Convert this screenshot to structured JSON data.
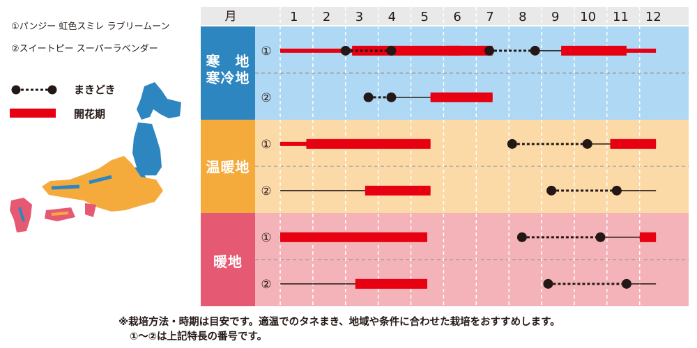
{
  "legend": {
    "varieties": [
      "①パンジー 虹色スミレ ラブリームーン",
      "②スイートピー スーパーラベンダー"
    ],
    "sowing_label": "まきどき",
    "flowering_label": "開花期"
  },
  "colors": {
    "header_bg": "#e9e9e9",
    "sowing": "#231815",
    "flowering": "#e60012",
    "cold_dark": "#2e86c1",
    "cold_light": "#aed8f3",
    "temperate_dark": "#f5ab3c",
    "temperate_light": "#fbdaa8",
    "warm_dark": "#e55a72",
    "warm_light": "#f4b3b8"
  },
  "map_legend_icon": "japan-map-icon",
  "notes": [
    "※栽培方法・時期は目安です。適温でのタネまき、地域や条件に合わせた栽培をおすすめします。",
    "①〜②は上記特長の番号です。"
  ],
  "chart_data": {
    "type": "gantt",
    "header_label": "月",
    "months": [
      "1",
      "2",
      "3",
      "4",
      "5",
      "6",
      "7",
      "8",
      "9",
      "10",
      "11",
      "12"
    ],
    "regions": [
      {
        "name": "寒　地\n寒冷地",
        "color_key": "cold",
        "rows": [
          {
            "label": "①",
            "sowing": [
              [
                3.0,
                4.4
              ],
              [
                7.4,
                8.8
              ]
            ],
            "grow_lines": [
              [
                4.4,
                6.1
              ],
              [
                8.8,
                9.6
              ]
            ],
            "flowering": [
              [
                6.1,
                7.5
              ],
              [
                1.0,
                3.2
              ],
              [
                3.2,
                6.5
              ],
              [
                9.6,
                12.5
              ]
            ],
            "flowering_thick": [
              [
                6.1,
                7.5
              ],
              [
                3.2,
                6.5
              ],
              [
                9.6,
                11.6
              ]
            ]
          },
          {
            "label": "②",
            "sowing": [
              [
                3.7,
                4.4
              ]
            ],
            "grow_lines": [
              [
                4.4,
                5.6
              ]
            ],
            "flowering": [
              [
                5.6,
                7.5
              ]
            ],
            "flowering_thick": [
              [
                5.6,
                7.5
              ]
            ]
          }
        ]
      },
      {
        "name": "温暖地",
        "color_key": "temperate",
        "rows": [
          {
            "label": "①",
            "sowing": [
              [
                8.1,
                10.4
              ]
            ],
            "grow_lines": [
              [
                10.4,
                11.1
              ]
            ],
            "flowering": [
              [
                1.0,
                5.6
              ],
              [
                11.1,
                12.5
              ]
            ],
            "flowering_thick": [
              [
                1.8,
                5.6
              ],
              [
                11.1,
                12.5
              ]
            ]
          },
          {
            "label": "②",
            "sowing": [
              [
                9.3,
                11.3
              ]
            ],
            "grow_lines": [
              [
                1.0,
                3.6
              ],
              [
                11.3,
                12.5
              ]
            ],
            "flowering": [
              [
                3.6,
                5.6
              ]
            ],
            "flowering_thick": [
              [
                3.6,
                5.6
              ]
            ]
          }
        ]
      },
      {
        "name": "暖地",
        "color_key": "warm",
        "rows": [
          {
            "label": "①",
            "sowing": [
              [
                8.4,
                10.8
              ]
            ],
            "grow_lines": [
              [
                10.8,
                12.0
              ]
            ],
            "flowering": [
              [
                1.0,
                5.5
              ],
              [
                12.0,
                12.5
              ]
            ],
            "flowering_thick": [
              [
                1.0,
                5.5
              ],
              [
                12.0,
                12.5
              ]
            ]
          },
          {
            "label": "②",
            "sowing": [
              [
                9.2,
                11.6
              ]
            ],
            "grow_lines": [
              [
                1.0,
                3.3
              ],
              [
                11.6,
                12.5
              ]
            ],
            "flowering": [
              [
                3.3,
                5.5
              ]
            ],
            "flowering_thick": [
              [
                3.3,
                5.5
              ]
            ]
          }
        ]
      }
    ]
  }
}
